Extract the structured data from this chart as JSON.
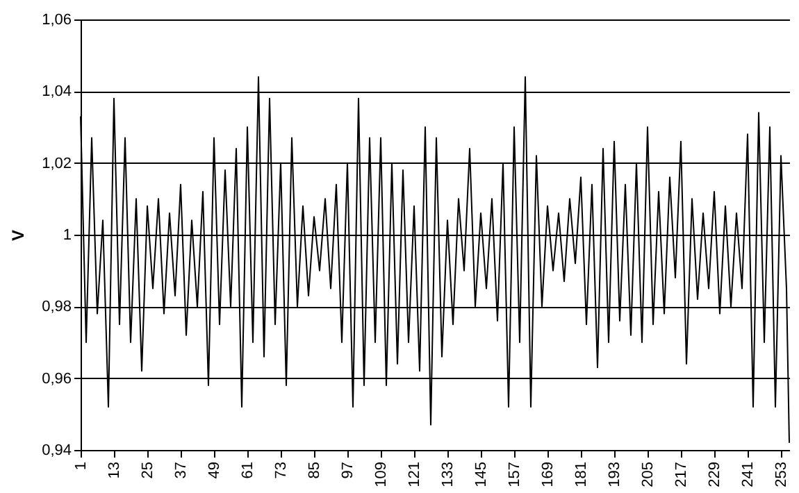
{
  "chart_data": {
    "type": "line",
    "ylabel": "V",
    "x": [
      1,
      3,
      5,
      7,
      9,
      11,
      13,
      15,
      17,
      19,
      21,
      23,
      25,
      27,
      29,
      31,
      33,
      35,
      37,
      39,
      41,
      43,
      45,
      47,
      49,
      51,
      53,
      55,
      57,
      59,
      61,
      63,
      65,
      67,
      69,
      71,
      73,
      75,
      77,
      79,
      81,
      83,
      85,
      87,
      89,
      91,
      93,
      95,
      97,
      99,
      101,
      103,
      105,
      107,
      109,
      111,
      113,
      115,
      117,
      119,
      121,
      123,
      125,
      127,
      129,
      131,
      133,
      135,
      137,
      139,
      141,
      143,
      145,
      147,
      149,
      151,
      153,
      155,
      157,
      159,
      161,
      163,
      165,
      167,
      169,
      171,
      173,
      175,
      177,
      179,
      181,
      183,
      185,
      187,
      189,
      191,
      193,
      195,
      197,
      199,
      201,
      203,
      205,
      207,
      209,
      211,
      213,
      215,
      217,
      219,
      221,
      223,
      225,
      227,
      229,
      231,
      233,
      235,
      237,
      239,
      241,
      243,
      245,
      247,
      249,
      251,
      253,
      255,
      256
    ],
    "series": [
      {
        "color": "#000000",
        "values": [
          1.033,
          0.97,
          1.027,
          0.978,
          1.004,
          0.952,
          1.038,
          0.975,
          1.027,
          0.97,
          1.01,
          0.962,
          1.008,
          0.985,
          1.01,
          0.978,
          1.006,
          0.983,
          1.014,
          0.972,
          1.004,
          0.98,
          1.012,
          0.958,
          1.027,
          0.975,
          1.018,
          0.98,
          1.024,
          0.952,
          1.03,
          0.97,
          1.044,
          0.966,
          1.038,
          0.975,
          1.02,
          0.958,
          1.027,
          0.98,
          1.008,
          0.983,
          1.005,
          0.99,
          1.01,
          0.985,
          1.014,
          0.97,
          1.02,
          0.952,
          1.038,
          0.958,
          1.027,
          0.97,
          1.027,
          0.958,
          1.02,
          0.964,
          1.018,
          0.97,
          1.008,
          0.962,
          1.03,
          0.947,
          1.027,
          0.966,
          1.004,
          0.975,
          1.01,
          0.99,
          1.024,
          0.98,
          1.006,
          0.985,
          1.01,
          0.976,
          1.02,
          0.952,
          1.03,
          0.97,
          1.044,
          0.952,
          1.022,
          0.98,
          1.008,
          0.99,
          1.006,
          0.987,
          1.01,
          0.992,
          1.016,
          0.975,
          1.014,
          0.963,
          1.024,
          0.97,
          1.026,
          0.976,
          1.014,
          0.972,
          1.02,
          0.97,
          1.03,
          0.975,
          1.012,
          0.978,
          1.016,
          0.988,
          1.026,
          0.964,
          1.01,
          0.982,
          1.006,
          0.985,
          1.012,
          0.978,
          1.008,
          0.98,
          1.006,
          0.985,
          1.028,
          0.952,
          1.034,
          0.97,
          1.03,
          0.952,
          1.022,
          0.985,
          0.942
        ]
      }
    ],
    "xlim": [
      1,
      256
    ],
    "xticks": [
      1,
      13,
      25,
      37,
      49,
      61,
      73,
      85,
      97,
      109,
      121,
      133,
      145,
      157,
      169,
      181,
      193,
      205,
      217,
      229,
      241,
      253
    ],
    "ylim": [
      0.94,
      1.06
    ],
    "yticks": [
      {
        "value": 0.94,
        "label": "0,94"
      },
      {
        "value": 0.96,
        "label": "0,96"
      },
      {
        "value": 0.98,
        "label": "0,98"
      },
      {
        "value": 1,
        "label": "1"
      },
      {
        "value": 1.02,
        "label": "1,02"
      },
      {
        "value": 1.04,
        "label": "1,04"
      },
      {
        "value": 1.06,
        "label": "1,06"
      }
    ],
    "grid": "y",
    "marker": "none",
    "line_style": "solid"
  }
}
